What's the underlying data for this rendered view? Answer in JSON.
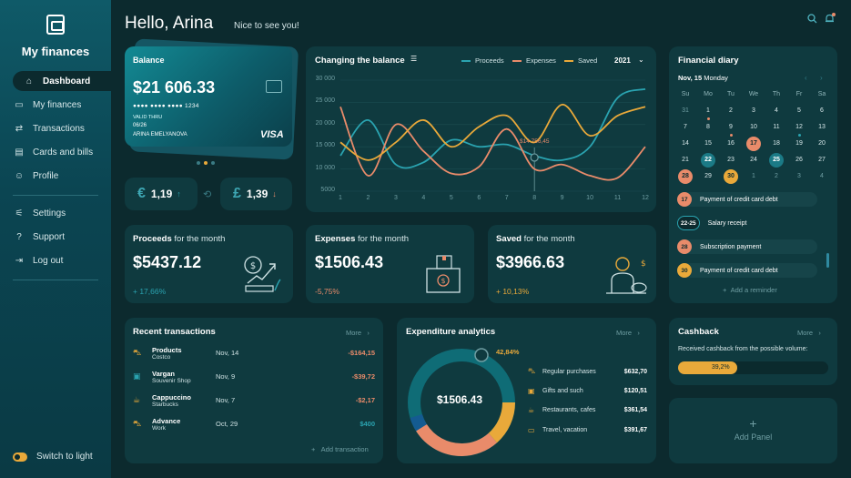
{
  "app": {
    "title": "My finances"
  },
  "nav": {
    "items": [
      {
        "label": "Dashboard",
        "icon": "home-icon"
      },
      {
        "label": "My finances",
        "icon": "wallet-icon"
      },
      {
        "label": "Transactions",
        "icon": "arrows-icon"
      },
      {
        "label": "Cards and bills",
        "icon": "card-icon"
      },
      {
        "label": "Profile",
        "icon": "user-icon"
      }
    ],
    "secondary": [
      {
        "label": "Settings",
        "icon": "sliders-icon"
      },
      {
        "label": "Support",
        "icon": "help-icon"
      },
      {
        "label": "Log out",
        "icon": "logout-icon"
      }
    ],
    "switch_label": "Switch to light"
  },
  "header": {
    "greeting": "Hello, Arina",
    "subtitle": "Nice to see you!"
  },
  "balance": {
    "title": "Balance",
    "amount": "$21 606.33",
    "card_number": "●●●● ●●●● ●●●● 1234",
    "valid_thru": "VALID THRU",
    "expiry": "06/26",
    "holder": "ARINA EMELYANOVA",
    "brand": "VISA"
  },
  "currency": {
    "eur": {
      "symbol": "€",
      "value": "1,19",
      "arrow": "↑"
    },
    "gbp": {
      "symbol": "£",
      "value": "1,39",
      "arrow": "↓"
    }
  },
  "chart": {
    "title": "Changing the balance",
    "year": "2021",
    "callout": "$14 756,45"
  },
  "chart_data": {
    "type": "line",
    "x": [
      1,
      2,
      3,
      4,
      5,
      6,
      7,
      8,
      9,
      10,
      11,
      12
    ],
    "xlim": [
      1,
      12
    ],
    "ylim": [
      5000,
      30000
    ],
    "yticks": [
      "30 000",
      "25 000",
      "20 000",
      "15 000",
      "10 000",
      "5000"
    ],
    "series": [
      {
        "name": "Proceeds",
        "color": "#2aa3b0",
        "values": [
          13000,
          21000,
          11000,
          11500,
          16500,
          15000,
          15500,
          13000,
          12000,
          15000,
          26000,
          28000
        ]
      },
      {
        "name": "Expenses",
        "color": "#e98b6a",
        "values": [
          24000,
          8500,
          20000,
          14000,
          9000,
          10500,
          19000,
          10000,
          11000,
          8500,
          8000,
          15000
        ]
      },
      {
        "name": "Saved",
        "color": "#e9a93a",
        "values": [
          16000,
          12000,
          16000,
          21000,
          15000,
          19500,
          22000,
          16000,
          24500,
          17500,
          22000,
          24000
        ]
      }
    ],
    "grid": true,
    "legend": "top"
  },
  "diary": {
    "title": "Financial diary",
    "date_bold": "Nov, 15",
    "date_rest": " Monday",
    "weekdays": [
      "Su",
      "Mo",
      "Tu",
      "We",
      "Th",
      "Fr",
      "Sa"
    ],
    "weeks": [
      [
        "31",
        "1",
        "2",
        "3",
        "4",
        "5",
        "6"
      ],
      [
        "7",
        "8",
        "9",
        "10",
        "11",
        "12",
        "13"
      ],
      [
        "14",
        "15",
        "16",
        "17",
        "18",
        "19",
        "20"
      ],
      [
        "21",
        "22",
        "23",
        "24",
        "25",
        "26",
        "27"
      ],
      [
        "28",
        "29",
        "30",
        "1",
        "2",
        "3",
        "4"
      ]
    ],
    "events": [
      {
        "badge": "17",
        "label": "Payment of credit card debt",
        "color": "#e98b6a"
      },
      {
        "badge": "22-25",
        "label": "Salary receipt",
        "color": "#2aa3b0"
      },
      {
        "badge": "28",
        "label": "Subscription payment",
        "color": "#e98b6a"
      },
      {
        "badge": "30",
        "label": "Payment of credit card debt",
        "color": "#e9a93a"
      }
    ],
    "add_reminder": "Add a reminder"
  },
  "stats": [
    {
      "title_bold": "Proceeds",
      "title_rest": " for the month",
      "amount": "$5437.12",
      "change": "+ 17,66%",
      "change_color": "#2aa3b0"
    },
    {
      "title_bold": "Expenses",
      "title_rest": " for the month",
      "amount": "$1506.43",
      "change": "-5,75%",
      "change_color": "#e98b6a"
    },
    {
      "title_bold": "Saved",
      "title_rest": " for the month",
      "amount": "$3966.63",
      "change": "+ 10,13%",
      "change_color": "#e9a93a"
    }
  ],
  "transactions": {
    "title": "Recent transactions",
    "more": "More",
    "rows": [
      {
        "name": "Products",
        "sub": "Costco",
        "date": "Nov, 14",
        "amount": "-$164,15",
        "color": "#e98b6a",
        "icon": "cart-icon"
      },
      {
        "name": "Vargan",
        "sub": "Souvenir Shop",
        "date": "Nov, 9",
        "amount": "-$39,72",
        "color": "#e98b6a",
        "icon": "gift-icon"
      },
      {
        "name": "Cappuccino",
        "sub": "Starbucks",
        "date": "Nov, 7",
        "amount": "-$2,17",
        "color": "#e98b6a",
        "icon": "cup-icon"
      },
      {
        "name": "Advance",
        "sub": "Work",
        "date": "Oct, 29",
        "amount": "$400",
        "color": "#2aa3b0",
        "icon": "cart-icon"
      }
    ],
    "add": "Add transaction"
  },
  "expenditure": {
    "title": "Expenditure analytics",
    "more": "More",
    "total": "$1506.43",
    "highlight_pct": "42,84%",
    "categories": [
      {
        "name": "Regular purchases",
        "value": "$632,70",
        "icon": "cart-icon"
      },
      {
        "name": "Gifts and such",
        "value": "$120,51",
        "icon": "gift-icon"
      },
      {
        "name": "Restaurants, cafes",
        "value": "$361,54",
        "icon": "cup-icon"
      },
      {
        "name": "Travel, vacation",
        "value": "$391,67",
        "icon": "tv-icon"
      }
    ]
  },
  "cashback": {
    "title": "Cashback",
    "more": "More",
    "text": "Received cashback from the possible volume:",
    "percent": "39,2%",
    "fraction": 0.392
  },
  "add_panel": {
    "label": "Add Panel"
  }
}
